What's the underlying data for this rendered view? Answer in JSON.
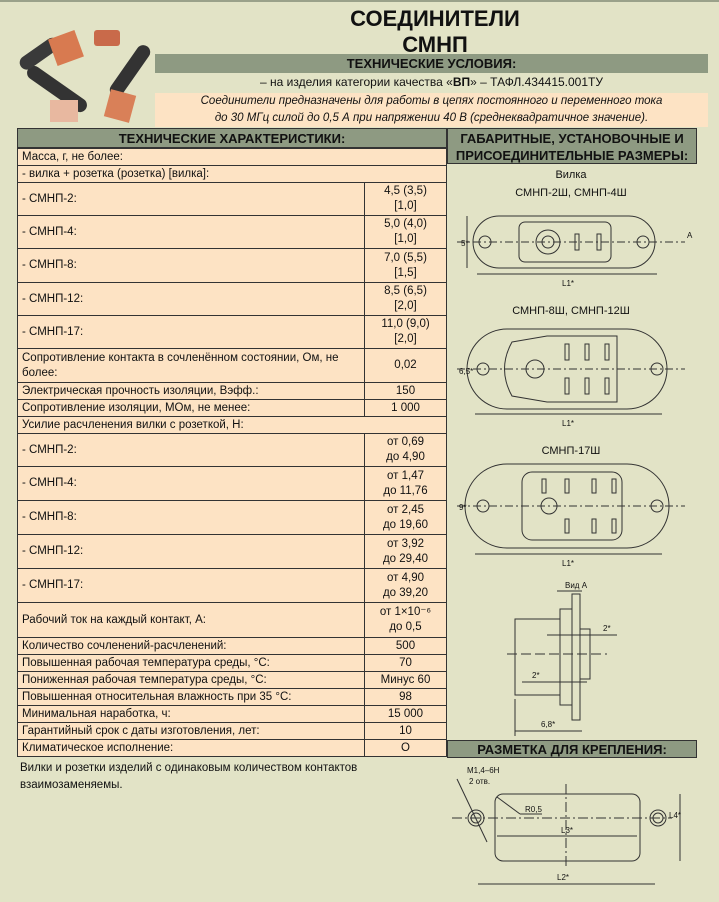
{
  "header": {
    "title_line1": "СОЕДИНИТЕЛИ",
    "title_line2": "СМНП",
    "tech_conditions": "ТЕХНИЧЕСКИЕ УСЛОВИЯ:",
    "quality_prefix": "– на изделия категории качества «",
    "quality_bold": "ВП",
    "quality_suffix": "» – ТАФЛ.434415.001ТУ",
    "purpose_line1": "Соединители предназначены для работы в цепях постоянного и переменного тока",
    "purpose_line2": "до 30 МГц силой до 0,5 А при напряжении 40 В (среднеквадратичное значение)."
  },
  "specs": {
    "heading": "ТЕХНИЧЕСКИЕ ХАРАКТЕРИСТИКИ:",
    "rows": [
      {
        "label": "Масса, г, не более:",
        "value": null
      },
      {
        "label": "- вилка + розетка (розетка) [вилка]:",
        "value": null
      },
      {
        "label": "- СМНП-2:",
        "value": "4,5 (3,5)",
        "value2": "[1,0]"
      },
      {
        "label": "- СМНП-4:",
        "value": "5,0 (4,0)",
        "value2": "[1,0]"
      },
      {
        "label": "- СМНП-8:",
        "value": "7,0 (5,5)",
        "value2": "[1,5]"
      },
      {
        "label": "- СМНП-12:",
        "value": "8,5 (6,5)",
        "value2": "[2,0]"
      },
      {
        "label": "- СМНП-17:",
        "value": "11,0 (9,0)",
        "value2": "[2,0]"
      },
      {
        "label": "Сопротивление контакта в сочленённом состоянии, Ом, не более:",
        "value": "0,02"
      },
      {
        "label": "Электрическая прочность изоляции, Вэфф.:",
        "value": "150"
      },
      {
        "label": "Сопротивление изоляции, МОм, не менее:",
        "value": "1 000"
      },
      {
        "label": "Усилие расчленения вилки с розеткой, Н:",
        "value": null
      },
      {
        "label": "- СМНП-2:",
        "value": "от 0,69",
        "value2": "до 4,90"
      },
      {
        "label": "- СМНП-4:",
        "value": "от 1,47",
        "value2": "до 11,76"
      },
      {
        "label": "- СМНП-8:",
        "value": "от 2,45",
        "value2": "до 19,60"
      },
      {
        "label": "- СМНП-12:",
        "value": "от 3,92",
        "value2": "до 29,40"
      },
      {
        "label": "- СМНП-17:",
        "value": "от 4,90",
        "value2": "до 39,20"
      },
      {
        "label": "Рабочий ток на каждый контакт, А:",
        "value": "от 1×10⁻⁶",
        "value2": "до 0,5"
      },
      {
        "label": "Количество сочленений-расчленений:",
        "value": "500"
      },
      {
        "label": "Повышенная рабочая температура среды, °С:",
        "value": "70"
      },
      {
        "label": "Пониженная рабочая температура среды, °С:",
        "value": "Минус 60"
      },
      {
        "label": "Повышенная относительная влажность при 35 °С:",
        "value": "98"
      },
      {
        "label": "Минимальная наработка, ч:",
        "value": "15 000"
      },
      {
        "label": "Гарантийный срок с даты изготовления, лет:",
        "value": "10"
      },
      {
        "label": "Климатическое исполнение:",
        "value": "О"
      }
    ],
    "note": "Вилки и розетки изделий с одинаковым количеством контактов взаимозаменяемы."
  },
  "dimensions": {
    "heading_line1": "ГАБАРИТНЫЕ, УСТАНОВОЧНЫЕ И",
    "heading_line2": "ПРИСОЕДИНИТЕЛЬНЫЕ РАЗМЕРЫ:",
    "plug": "Вилка",
    "d1_title": "СМНП-2Ш, СМНП-4Ш",
    "d2_title": "СМНП-8Ш, СМНП-12Ш",
    "d3_title": "СМНП-17Ш",
    "h1": "5*",
    "h2": "6,5*",
    "h3": "9*",
    "l1": "L1*",
    "arrow_a": "А",
    "view_a": "Вид А",
    "dim_2a": "2*",
    "dim_2b": "2*",
    "dim_68": "6,8*"
  },
  "mounting": {
    "heading": "РАЗМЕТКА ДЛЯ КРЕПЛЕНИЯ:",
    "thread": "М1,4–6Н",
    "holes": "2 отв.",
    "radius": "R0,5",
    "l3": "L3*",
    "l2": "L2*",
    "l4": "L4*"
  }
}
